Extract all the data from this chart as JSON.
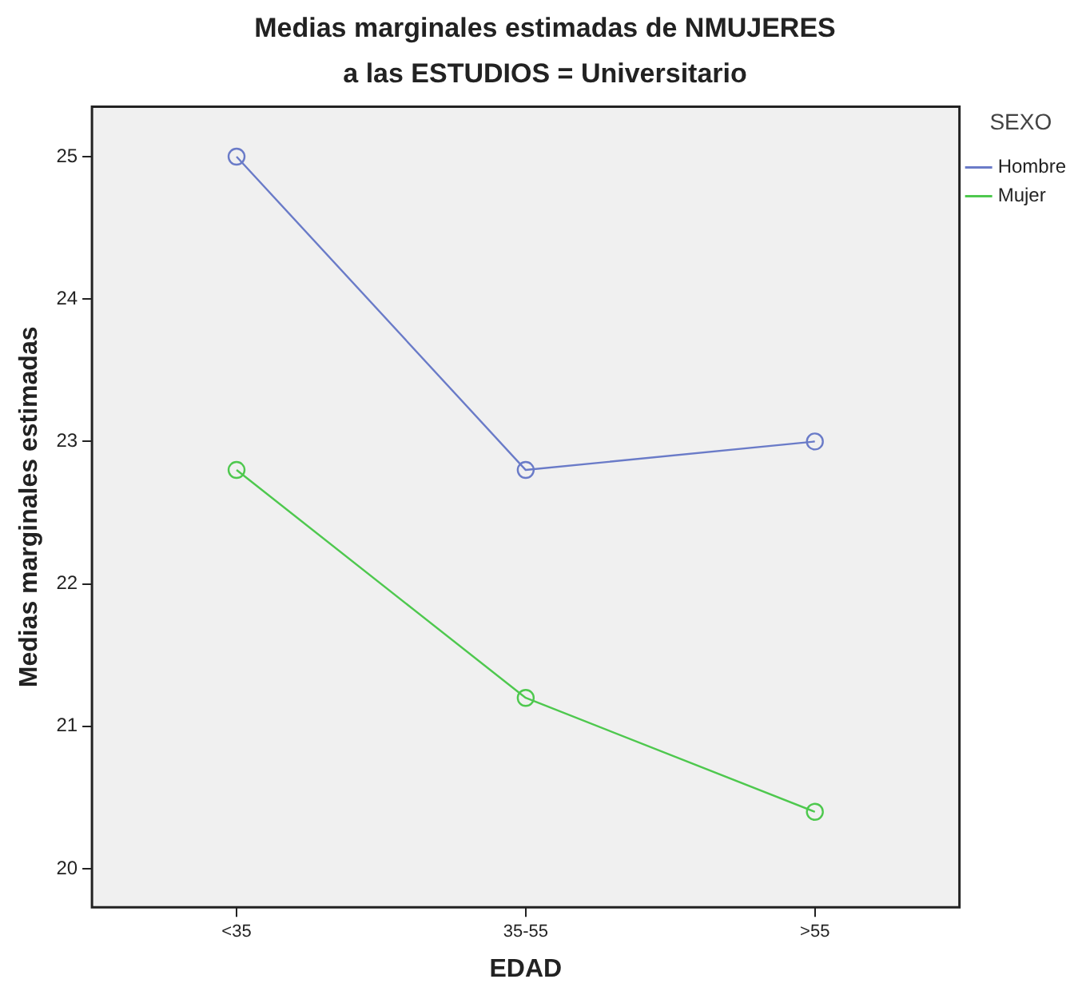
{
  "chart_data": {
    "type": "line",
    "title": "Medias marginales estimadas de NMUJERES",
    "subtitle": "a las ESTUDIOS = Universitario",
    "xlabel": "EDAD",
    "ylabel": "Medias marginales estimadas",
    "legend_title": "SEXO",
    "legend": "right",
    "categories": [
      "<35",
      "35-55",
      ">55"
    ],
    "series": [
      {
        "name": "Hombre",
        "color": "#6a7bc8",
        "values": [
          25,
          22.8,
          23.0
        ]
      },
      {
        "name": "Mujer",
        "color": "#4ec84e",
        "values": [
          22.8,
          21.2,
          20.4
        ]
      }
    ],
    "ylim": [
      19.73,
      25.35
    ],
    "yticks": [
      20,
      21,
      22,
      23,
      24,
      25
    ],
    "grid": false,
    "marker": "circle",
    "line_style": "solid"
  }
}
